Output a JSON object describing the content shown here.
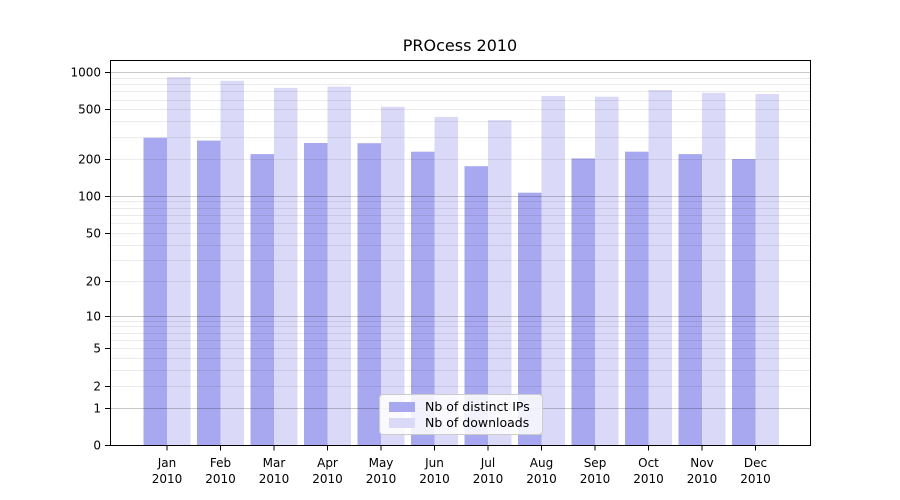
{
  "chart_data": {
    "type": "bar",
    "title": "PROcess 2010",
    "scale": "log1p",
    "categories": [
      "Jan",
      "Feb",
      "Mar",
      "Apr",
      "May",
      "Jun",
      "Jul",
      "Aug",
      "Sep",
      "Oct",
      "Nov",
      "Dec"
    ],
    "x_sub_label": "2010",
    "series": [
      {
        "name": "Nb of distinct IPs",
        "color": "#a8a8f0",
        "values": [
          295,
          280,
          218,
          268,
          267,
          228,
          174,
          106,
          201,
          228,
          218,
          199
        ]
      },
      {
        "name": "Nb of downloads",
        "color": "#dadaf8",
        "values": [
          910,
          850,
          745,
          763,
          525,
          435,
          410,
          642,
          633,
          717,
          680,
          665
        ]
      }
    ],
    "y_ticks": [
      0,
      1,
      2,
      5,
      10,
      20,
      50,
      100,
      200,
      500,
      1000
    ],
    "ylim": [
      0,
      1250
    ],
    "xlabel": "",
    "ylabel": "",
    "grid": {
      "on": true,
      "minor_values": [
        1,
        2,
        3,
        4,
        5,
        6,
        7,
        8,
        9,
        10,
        20,
        30,
        40,
        50,
        60,
        70,
        80,
        90,
        100,
        200,
        300,
        400,
        500,
        600,
        700,
        800,
        900,
        1000
      ],
      "major_values": [
        1,
        10,
        100,
        1000
      ],
      "minor_opacity": 0.08,
      "major_opacity": 0.21
    },
    "legend_position": "bottom-center",
    "colors": {
      "spine": "#000000",
      "background": "#ffffff",
      "legend_border": "#cccccc"
    }
  }
}
